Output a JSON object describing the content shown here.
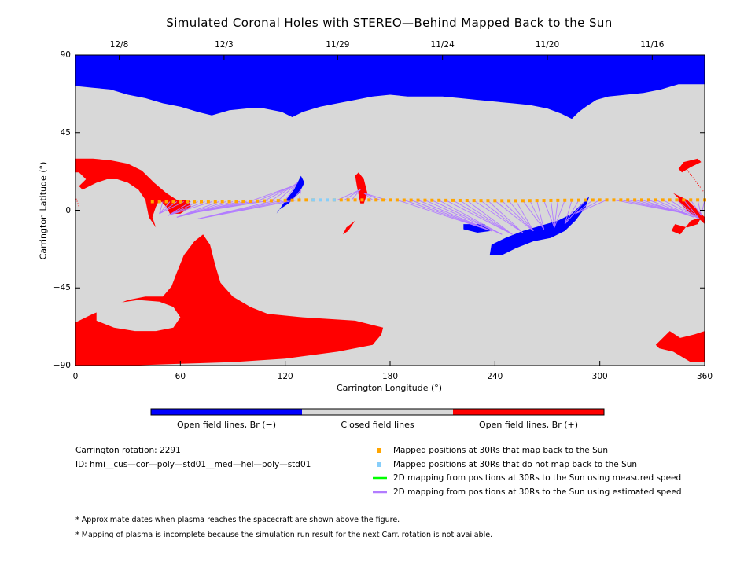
{
  "chart_data": {
    "type": "map",
    "title": "Simulated Coronal Holes with STEREO—Behind Mapped Back to the Sun",
    "xlabel": "Carrington Longitude (°)",
    "ylabel": "Carrington Latitude (°)",
    "xlim": [
      0,
      360
    ],
    "ylim": [
      -90,
      90
    ],
    "xticks": [
      0,
      60,
      120,
      180,
      240,
      300,
      360
    ],
    "yticks": [
      90,
      45,
      0,
      -45,
      -90
    ],
    "top_axis": {
      "ticks": [
        {
          "lon": 25,
          "label": "12/8"
        },
        {
          "lon": 85,
          "label": "12/3"
        },
        {
          "lon": 150,
          "label": "11/29"
        },
        {
          "lon": 210,
          "label": "11/24"
        },
        {
          "lon": 270,
          "label": "11/20"
        },
        {
          "lon": 330,
          "label": "11/16"
        }
      ]
    },
    "colors": {
      "open_negative": "#0000ff",
      "closed": "#d8d8d8",
      "open_positive": "#ff0000",
      "mapped_yes": "#ffa500",
      "mapped_no": "#87cefa",
      "measured_speed": "#00ff00",
      "estimated_speed": "#b27cff"
    },
    "colorbar": [
      {
        "label": "Open field lines, Br (−)",
        "color": "#0000ff"
      },
      {
        "label": "Closed field lines",
        "color": "#d8d8d8"
      },
      {
        "label": "Open field lines, Br (+)",
        "color": "#ff0000"
      }
    ],
    "regions": {
      "open_negative": [
        [
          [
            0,
            90
          ],
          [
            360,
            90
          ],
          [
            360,
            73
          ],
          [
            345,
            73
          ],
          [
            335,
            70
          ],
          [
            325,
            68
          ],
          [
            315,
            67
          ],
          [
            305,
            66
          ],
          [
            298,
            64
          ],
          [
            292,
            60
          ],
          [
            288,
            57
          ],
          [
            284,
            53
          ],
          [
            278,
            56
          ],
          [
            270,
            59
          ],
          [
            260,
            61
          ],
          [
            250,
            62
          ],
          [
            240,
            63
          ],
          [
            230,
            64
          ],
          [
            220,
            65
          ],
          [
            210,
            66
          ],
          [
            200,
            66
          ],
          [
            190,
            66
          ],
          [
            180,
            67
          ],
          [
            170,
            66
          ],
          [
            160,
            64
          ],
          [
            150,
            62
          ],
          [
            140,
            60
          ],
          [
            130,
            57
          ],
          [
            124,
            54
          ],
          [
            118,
            57
          ],
          [
            108,
            59
          ],
          [
            98,
            59
          ],
          [
            88,
            58
          ],
          [
            78,
            55
          ],
          [
            70,
            57
          ],
          [
            60,
            60
          ],
          [
            50,
            62
          ],
          [
            40,
            65
          ],
          [
            30,
            67
          ],
          [
            20,
            70
          ],
          [
            10,
            71
          ],
          [
            0,
            72
          ]
        ],
        [
          [
            238,
            -20
          ],
          [
            246,
            -16
          ],
          [
            256,
            -12
          ],
          [
            266,
            -9
          ],
          [
            276,
            -6
          ],
          [
            284,
            -2
          ],
          [
            290,
            4
          ],
          [
            294,
            8
          ],
          [
            292,
            2
          ],
          [
            286,
            -6
          ],
          [
            280,
            -12
          ],
          [
            272,
            -16
          ],
          [
            262,
            -18
          ],
          [
            252,
            -22
          ],
          [
            244,
            -26
          ],
          [
            237,
            -26
          ]
        ],
        [
          [
            222,
            -8
          ],
          [
            234,
            -8
          ],
          [
            238,
            -12
          ],
          [
            230,
            -13
          ],
          [
            222,
            -11
          ]
        ],
        [
          [
            116,
            0
          ],
          [
            122,
            4
          ],
          [
            128,
            10
          ],
          [
            131,
            16
          ],
          [
            129,
            20
          ],
          [
            125,
            12
          ],
          [
            119,
            4
          ],
          [
            115,
            -2
          ]
        ]
      ],
      "open_positive": [
        [
          [
            0,
            30
          ],
          [
            10,
            30
          ],
          [
            20,
            29
          ],
          [
            30,
            27
          ],
          [
            38,
            23
          ],
          [
            45,
            16
          ],
          [
            52,
            10
          ],
          [
            58,
            6
          ],
          [
            65,
            6
          ],
          [
            66,
            2
          ],
          [
            60,
            -2
          ],
          [
            54,
            -2
          ],
          [
            52,
            2
          ],
          [
            48,
            6
          ],
          [
            46,
            2
          ],
          [
            44,
            -4
          ],
          [
            46,
            -10
          ],
          [
            42,
            -4
          ],
          [
            40,
            6
          ],
          [
            36,
            12
          ],
          [
            30,
            16
          ],
          [
            24,
            18
          ],
          [
            18,
            18
          ],
          [
            12,
            16
          ],
          [
            8,
            14
          ],
          [
            4,
            12
          ],
          [
            2,
            14
          ],
          [
            6,
            18
          ],
          [
            2,
            22
          ],
          [
            0,
            22
          ]
        ],
        [
          [
            0,
            -65
          ],
          [
            10,
            -60
          ],
          [
            20,
            -56
          ],
          [
            30,
            -52
          ],
          [
            40,
            -50
          ],
          [
            50,
            -50
          ],
          [
            55,
            -44
          ],
          [
            58,
            -36
          ],
          [
            62,
            -26
          ],
          [
            68,
            -18
          ],
          [
            73,
            -14
          ],
          [
            77,
            -20
          ],
          [
            80,
            -32
          ],
          [
            83,
            -42
          ],
          [
            90,
            -50
          ],
          [
            100,
            -56
          ],
          [
            110,
            -60
          ],
          [
            130,
            -62
          ],
          [
            160,
            -64
          ],
          [
            176,
            -68
          ],
          [
            175,
            -72
          ],
          [
            170,
            -78
          ],
          [
            150,
            -82
          ],
          [
            120,
            -86
          ],
          [
            90,
            -88
          ],
          [
            60,
            -89
          ],
          [
            30,
            -90
          ],
          [
            0,
            -90
          ]
        ],
        [
          [
            162,
            22
          ],
          [
            165,
            18
          ],
          [
            167,
            10
          ],
          [
            165,
            4
          ],
          [
            163,
            4
          ],
          [
            161,
            14
          ],
          [
            160,
            20
          ]
        ],
        [
          [
            155,
            -10
          ],
          [
            160,
            -6
          ],
          [
            156,
            -12
          ],
          [
            153,
            -14
          ]
        ],
        [
          [
            345,
            5
          ],
          [
            352,
            -2
          ],
          [
            358,
            -6
          ],
          [
            360,
            -8
          ],
          [
            360,
            -4
          ],
          [
            356,
            0
          ],
          [
            350,
            6
          ],
          [
            342,
            10
          ],
          [
            345,
            7
          ]
        ],
        [
          [
            343,
            -8
          ],
          [
            350,
            -10
          ],
          [
            356,
            -8
          ],
          [
            358,
            -4
          ],
          [
            352,
            -6
          ],
          [
            346,
            -14
          ],
          [
            341,
            -12
          ]
        ],
        [
          [
            340,
            -70
          ],
          [
            346,
            -74
          ],
          [
            354,
            -72
          ],
          [
            360,
            -70
          ],
          [
            360,
            -88
          ],
          [
            352,
            -88
          ],
          [
            342,
            -82
          ],
          [
            334,
            -80
          ],
          [
            332,
            -78
          ]
        ],
        [
          [
            348,
            28
          ],
          [
            356,
            30
          ],
          [
            358,
            28
          ],
          [
            352,
            25
          ],
          [
            347,
            22
          ],
          [
            345,
            24
          ]
        ]
      ],
      "closed_holes": [
        [
          [
            12,
            -58
          ],
          [
            22,
            -54
          ],
          [
            36,
            -52
          ],
          [
            48,
            -53
          ],
          [
            56,
            -56
          ],
          [
            60,
            -62
          ],
          [
            56,
            -68
          ],
          [
            46,
            -70
          ],
          [
            34,
            -70
          ],
          [
            22,
            -68
          ],
          [
            12,
            -64
          ]
        ]
      ],
      "dotted_edges": [
        [
          [
            360,
            10
          ],
          [
            348,
            26
          ],
          [
            346,
            22
          ]
        ],
        [
          [
            0,
            8
          ],
          [
            2,
            2
          ]
        ]
      ]
    },
    "mapped_yes_lon": [
      44,
      48,
      52,
      56,
      60,
      64,
      68,
      72,
      76,
      80,
      84,
      88,
      92,
      96,
      100,
      104,
      108,
      112,
      116,
      120,
      124,
      128,
      132,
      136,
      148,
      152,
      156,
      160,
      164,
      168,
      172,
      176,
      180,
      184,
      188,
      192,
      196,
      200,
      204,
      208,
      212,
      216,
      220,
      224,
      228,
      232,
      236,
      240,
      244,
      248,
      252,
      256,
      260,
      264,
      268,
      272,
      276,
      280,
      284,
      288,
      292,
      296,
      300,
      304,
      308,
      312,
      316,
      320,
      324,
      328,
      332,
      336,
      340,
      344,
      348,
      352,
      356,
      360
    ],
    "mapped_no_lon": [
      136,
      140,
      144,
      148
    ],
    "mapped_lat_profile": [
      [
        44,
        5
      ],
      [
        90,
        5
      ],
      [
        130,
        6
      ],
      [
        180,
        6
      ],
      [
        250,
        5.5
      ],
      [
        300,
        6
      ],
      [
        360,
        6
      ]
    ],
    "estimated_speed_lines": [
      {
        "from_lon": [
          50,
          54,
          58,
          62,
          66,
          70,
          74,
          78,
          82,
          86,
          90,
          94,
          98,
          102,
          106,
          110,
          114,
          118,
          122,
          126
        ],
        "to": [
          [
            48,
            -2
          ],
          [
            53,
            -3
          ],
          [
            58,
            -4
          ],
          [
            64,
            -2
          ],
          [
            70,
            -5
          ]
        ],
        "weights": null
      },
      {
        "from_lon": [
          100,
          104,
          108,
          112,
          116,
          120,
          124,
          128
        ],
        "to": [
          [
            124,
            14
          ],
          [
            127,
            16
          ],
          [
            129,
            12
          ]
        ]
      },
      {
        "from_lon": [
          150,
          154,
          158,
          170,
          174,
          178
        ],
        "to": [
          [
            163,
            12
          ],
          [
            165,
            10
          ]
        ]
      },
      {
        "from_lon": [
          184,
          188,
          192,
          196,
          200,
          204,
          208,
          212,
          216,
          220,
          224,
          228,
          232,
          236,
          240,
          244,
          248,
          252,
          256,
          260,
          264,
          268,
          272,
          276,
          280,
          284,
          288,
          292,
          296,
          300,
          304
        ],
        "to": [
          [
            238,
            -12
          ],
          [
            244,
            -14
          ],
          [
            250,
            -14
          ],
          [
            256,
            -13
          ],
          [
            262,
            -12
          ],
          [
            268,
            -11
          ],
          [
            274,
            -10
          ],
          [
            280,
            -8
          ],
          [
            286,
            -2
          ]
        ]
      },
      {
        "from_lon": [
          308,
          312,
          316,
          320,
          324,
          328,
          332,
          336,
          340,
          344,
          348,
          352,
          356,
          360
        ],
        "to": [
          [
            350,
            -2
          ],
          [
            354,
            -4
          ],
          [
            357,
            -5
          ],
          [
            358,
            -3
          ]
        ]
      }
    ],
    "legend": [
      {
        "marker": "square",
        "color": "#ffa500",
        "label": "Mapped positions at 30Rs that map back to the Sun"
      },
      {
        "marker": "square",
        "color": "#87cefa",
        "label": "Mapped positions at 30Rs that do not map back to the Sun"
      },
      {
        "marker": "line",
        "color": "#00ff00",
        "label": "2D mapping from positions at 30Rs to the Sun using measured speed"
      },
      {
        "marker": "line",
        "color": "#b27cff",
        "label": "2D mapping from positions at 30Rs to the Sun using estimated speed"
      }
    ],
    "info": {
      "rotation": "Carrington rotation: 2291",
      "id": "ID: hmi__cus—cor—poly—std01__med—hel—poly—std01"
    },
    "footnotes": [
      "* Approximate dates when plasma reaches the spacecraft are shown above the figure.",
      "* Mapping of plasma is incomplete because the simulation run result for the next Carr. rotation is not available."
    ]
  }
}
